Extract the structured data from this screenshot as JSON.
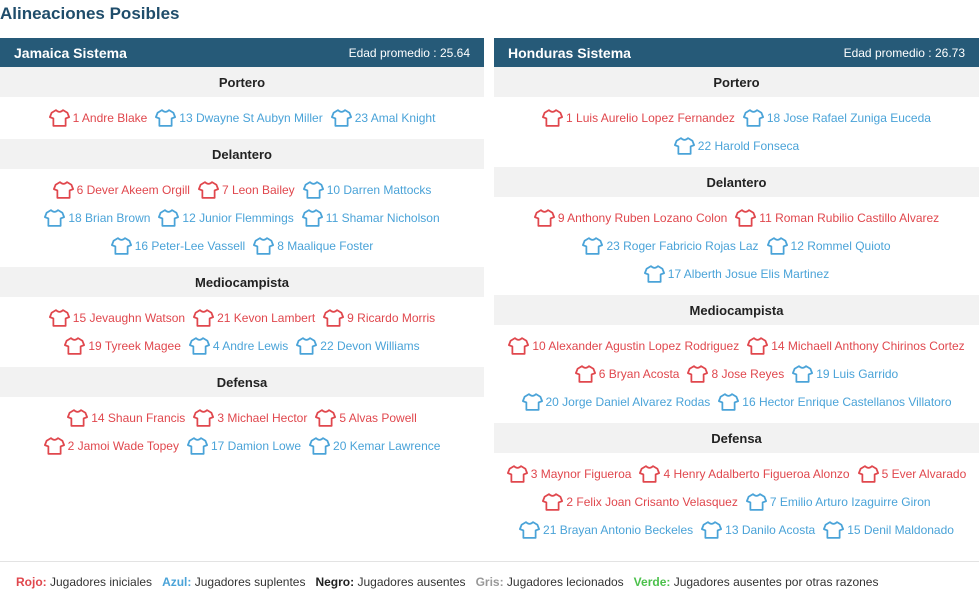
{
  "page_title": "Alineaciones Posibles",
  "colors": {
    "header_bg": "#265a78",
    "starter": "#e0474d",
    "sub": "#4aa3d8",
    "absent": "#222222",
    "injured": "#999999",
    "other": "#4cc14c"
  },
  "teams": [
    {
      "name": "Jamaica Sistema",
      "avg_age": "Edad promedio : 25.64",
      "sections": [
        {
          "title": "Portero",
          "rows": [
            [
              {
                "name": "1 Andre Blake",
                "status": "red"
              },
              {
                "name": "13 Dwayne St Aubyn Miller",
                "status": "blue"
              },
              {
                "name": "23 Amal Knight",
                "status": "blue"
              }
            ]
          ]
        },
        {
          "title": "Delantero",
          "rows": [
            [
              {
                "name": "6 Dever Akeem Orgill",
                "status": "red"
              },
              {
                "name": "7 Leon Bailey",
                "status": "red"
              },
              {
                "name": "10 Darren Mattocks",
                "status": "blue"
              }
            ],
            [
              {
                "name": "18 Brian Brown",
                "status": "blue"
              },
              {
                "name": "12 Junior Flemmings",
                "status": "blue"
              },
              {
                "name": "11 Shamar Nicholson",
                "status": "blue"
              }
            ],
            [
              {
                "name": "16 Peter-Lee Vassell",
                "status": "blue"
              },
              {
                "name": "8 Maalique Foster",
                "status": "blue"
              }
            ]
          ]
        },
        {
          "title": "Mediocampista",
          "rows": [
            [
              {
                "name": "15 Jevaughn Watson",
                "status": "red"
              },
              {
                "name": "21 Kevon Lambert",
                "status": "red"
              },
              {
                "name": "9 Ricardo Morris",
                "status": "red"
              }
            ],
            [
              {
                "name": "19 Tyreek Magee",
                "status": "red"
              },
              {
                "name": "4 Andre Lewis",
                "status": "blue"
              },
              {
                "name": "22 Devon Williams",
                "status": "blue"
              }
            ]
          ]
        },
        {
          "title": "Defensa",
          "rows": [
            [
              {
                "name": "14 Shaun Francis",
                "status": "red"
              },
              {
                "name": "3 Michael Hector",
                "status": "red"
              },
              {
                "name": "5 Alvas Powell",
                "status": "red"
              }
            ],
            [
              {
                "name": "2 Jamoi Wade Topey",
                "status": "red"
              },
              {
                "name": "17 Damion Lowe",
                "status": "blue"
              },
              {
                "name": "20 Kemar Lawrence",
                "status": "blue"
              }
            ]
          ]
        }
      ]
    },
    {
      "name": "Honduras Sistema",
      "avg_age": "Edad promedio : 26.73",
      "sections": [
        {
          "title": "Portero",
          "rows": [
            [
              {
                "name": "1 Luis Aurelio Lopez Fernandez",
                "status": "red"
              },
              {
                "name": "18 Jose Rafael Zuniga Euceda",
                "status": "blue"
              }
            ],
            [
              {
                "name": "22 Harold Fonseca",
                "status": "blue"
              }
            ]
          ]
        },
        {
          "title": "Delantero",
          "rows": [
            [
              {
                "name": "9 Anthony Ruben Lozano Colon",
                "status": "red"
              },
              {
                "name": "11 Roman Rubilio Castillo Alvarez",
                "status": "red"
              }
            ],
            [
              {
                "name": "23 Roger Fabricio Rojas Laz",
                "status": "blue"
              },
              {
                "name": "12 Rommel Quioto",
                "status": "blue"
              }
            ],
            [
              {
                "name": "17 Alberth Josue Elis Martinez",
                "status": "blue"
              }
            ]
          ]
        },
        {
          "title": "Mediocampista",
          "rows": [
            [
              {
                "name": "10 Alexander Agustin Lopez Rodriguez",
                "status": "red"
              },
              {
                "name": "14 Michaell Anthony Chirinos Cortez",
                "status": "red"
              }
            ],
            [
              {
                "name": "6 Bryan Acosta",
                "status": "red"
              },
              {
                "name": "8 Jose Reyes",
                "status": "red"
              },
              {
                "name": "19 Luis Garrido",
                "status": "blue"
              }
            ],
            [
              {
                "name": "20 Jorge Daniel Alvarez Rodas",
                "status": "blue"
              },
              {
                "name": "16 Hector Enrique Castellanos Villatoro",
                "status": "blue"
              }
            ]
          ]
        },
        {
          "title": "Defensa",
          "rows": [
            [
              {
                "name": "3 Maynor Figueroa",
                "status": "red"
              },
              {
                "name": "4 Henry Adalberto Figueroa Alonzo",
                "status": "red"
              },
              {
                "name": "5 Ever Alvarado",
                "status": "red"
              }
            ],
            [
              {
                "name": "2 Felix Joan Crisanto Velasquez",
                "status": "red"
              },
              {
                "name": "7 Emilio Arturo Izaguirre Giron",
                "status": "blue"
              }
            ],
            [
              {
                "name": "21 Brayan Antonio Beckeles",
                "status": "blue"
              },
              {
                "name": "13 Danilo Acosta",
                "status": "blue"
              },
              {
                "name": "15 Denil Maldonado",
                "status": "blue"
              }
            ]
          ]
        }
      ]
    }
  ],
  "legend": [
    {
      "key": "Rojo:",
      "text": " Jugadores iniciales",
      "color": "#e0474d"
    },
    {
      "key": "Azul:",
      "text": " Jugadores suplentes",
      "color": "#4aa3d8"
    },
    {
      "key": "Negro:",
      "text": " Jugadores ausentes",
      "color": "#222222"
    },
    {
      "key": "Gris:",
      "text": " Jugadores lecionados",
      "color": "#999999"
    },
    {
      "key": "Verde:",
      "text": " Jugadores ausentes por otras razones",
      "color": "#4cc14c"
    }
  ]
}
